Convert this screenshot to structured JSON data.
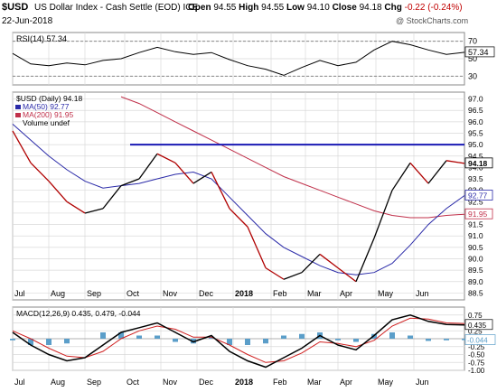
{
  "header": {
    "symbol": "$USD",
    "description": "US Dollar Index - Cash Settle (EOD) ICE",
    "date": "22-Jun-2018",
    "open_label": "Open",
    "open": "94.55",
    "high_label": "High",
    "high": "94.55",
    "low_label": "Low",
    "low": "94.10",
    "close_label": "Close",
    "close": "94.18",
    "chg_label": "Chg",
    "chg": "-0.22 (-0.24%)",
    "watermark": "@ StockCharts.com"
  },
  "colors": {
    "price": "#000000",
    "price_down": "#b00000",
    "ma50": "#2a2aa8",
    "ma200": "#c0304a",
    "resistance": "#1a1ab4",
    "rsi_fill": "#1f7a1f",
    "macd_line": "#000000",
    "signal_line": "#d02020",
    "histogram": "#5b9ec9",
    "grid": "#d9d9d9"
  },
  "chart_data": [
    {
      "type": "line",
      "panel": "rsi",
      "legend": "RSI(14) 57.34",
      "ylim": [
        20,
        80
      ],
      "yticks": [
        30,
        50,
        70
      ],
      "last_value_label": "57.34",
      "reference_lines": [
        30,
        70
      ],
      "x": [
        0,
        10,
        20,
        30,
        40,
        50,
        60,
        70,
        80,
        90,
        100,
        110,
        120,
        130,
        140,
        150,
        160,
        170,
        180,
        190,
        200,
        210,
        220,
        230,
        240,
        250
      ],
      "values": [
        56,
        44,
        42,
        45,
        43,
        48,
        50,
        57,
        63,
        58,
        55,
        57,
        49,
        42,
        38,
        31,
        40,
        48,
        42,
        46,
        60,
        70,
        66,
        60,
        55,
        57.34
      ]
    },
    {
      "type": "line",
      "panel": "price",
      "legend": [
        "$USD (Daily) 94.18",
        "MA(50) 92.77",
        "MA(200) 91.95",
        "Volume undef"
      ],
      "ylim": [
        88.2,
        97.3
      ],
      "yticks": [
        88.5,
        89.0,
        89.5,
        90.0,
        90.5,
        91.0,
        91.5,
        92.0,
        92.5,
        93.0,
        93.5,
        94.0,
        94.5,
        95.0,
        95.5,
        96.0,
        96.5,
        97.0
      ],
      "last_value_labels": [
        "94.18",
        "92.77",
        "91.95"
      ],
      "resistance_line": {
        "level": 95.0,
        "x_start": 65,
        "x_end": 250
      },
      "x": [
        0,
        10,
        20,
        30,
        40,
        50,
        60,
        70,
        80,
        90,
        100,
        110,
        120,
        130,
        140,
        150,
        160,
        170,
        180,
        190,
        200,
        210,
        220,
        230,
        240,
        250
      ],
      "series": [
        {
          "name": "$USD (Daily)",
          "values": [
            95.6,
            94.2,
            93.4,
            92.5,
            92.0,
            92.2,
            93.2,
            93.5,
            94.6,
            94.2,
            93.3,
            93.8,
            92.2,
            91.4,
            89.6,
            89.1,
            89.4,
            90.2,
            89.6,
            89.0,
            90.9,
            93.0,
            94.2,
            93.3,
            94.3,
            94.18
          ]
        },
        {
          "name": "MA(50)",
          "values": [
            95.9,
            95.2,
            94.5,
            93.9,
            93.4,
            93.1,
            93.2,
            93.3,
            93.5,
            93.7,
            93.8,
            93.5,
            92.7,
            91.9,
            91.1,
            90.5,
            90.1,
            89.7,
            89.4,
            89.3,
            89.4,
            89.8,
            90.6,
            91.5,
            92.2,
            92.77
          ]
        },
        {
          "name": "MA(200)",
          "values": [
            null,
            null,
            null,
            null,
            null,
            null,
            97.1,
            96.8,
            96.4,
            96.0,
            95.6,
            95.2,
            94.8,
            94.4,
            94.0,
            93.6,
            93.3,
            93.0,
            92.7,
            92.4,
            92.1,
            91.9,
            91.8,
            91.8,
            91.9,
            91.95
          ]
        }
      ]
    },
    {
      "type": "line",
      "panel": "macd",
      "legend": "MACD(12,26,9) 0.435, 0.479, -0.044",
      "ylim": [
        -1.0,
        1.0
      ],
      "yticks": [
        0.75,
        0.5,
        0.25,
        0.0,
        -0.25,
        -0.5,
        -0.75,
        -1.0
      ],
      "last_value_labels": [
        "0.435",
        "-0.044"
      ],
      "x": [
        0,
        10,
        20,
        30,
        40,
        50,
        60,
        70,
        80,
        90,
        100,
        110,
        120,
        130,
        140,
        150,
        160,
        170,
        180,
        190,
        200,
        210,
        220,
        230,
        240,
        250
      ],
      "series": [
        {
          "name": "MACD",
          "values": [
            0.2,
            -0.2,
            -0.5,
            -0.7,
            -0.6,
            -0.2,
            0.2,
            0.35,
            0.5,
            0.2,
            -0.1,
            0.1,
            -0.4,
            -0.7,
            -0.9,
            -0.6,
            -0.3,
            0.1,
            -0.2,
            -0.35,
            0.1,
            0.6,
            0.75,
            0.55,
            0.45,
            0.435
          ]
        },
        {
          "name": "Signal",
          "values": [
            0.25,
            0.0,
            -0.3,
            -0.55,
            -0.6,
            -0.4,
            0.0,
            0.25,
            0.4,
            0.3,
            0.05,
            0.05,
            -0.2,
            -0.5,
            -0.75,
            -0.7,
            -0.45,
            -0.1,
            -0.15,
            -0.25,
            -0.05,
            0.4,
            0.65,
            0.62,
            0.5,
            0.479
          ]
        },
        {
          "name": "Histogram",
          "values": [
            -0.05,
            -0.2,
            -0.2,
            -0.15,
            0.0,
            0.2,
            0.2,
            0.1,
            0.1,
            -0.1,
            -0.15,
            0.05,
            -0.2,
            -0.2,
            -0.15,
            0.1,
            0.15,
            0.2,
            -0.05,
            -0.1,
            0.15,
            0.2,
            0.1,
            -0.07,
            -0.05,
            -0.044
          ]
        }
      ]
    }
  ],
  "x_axis": {
    "labels": [
      "Jul",
      "Aug",
      "Sep",
      "Oct",
      "Nov",
      "Dec",
      "2018",
      "Feb",
      "Mar",
      "Apr",
      "May",
      "Jun"
    ],
    "positions": [
      0,
      20,
      40,
      62,
      82,
      102,
      122,
      143,
      162,
      180,
      201,
      222
    ]
  }
}
